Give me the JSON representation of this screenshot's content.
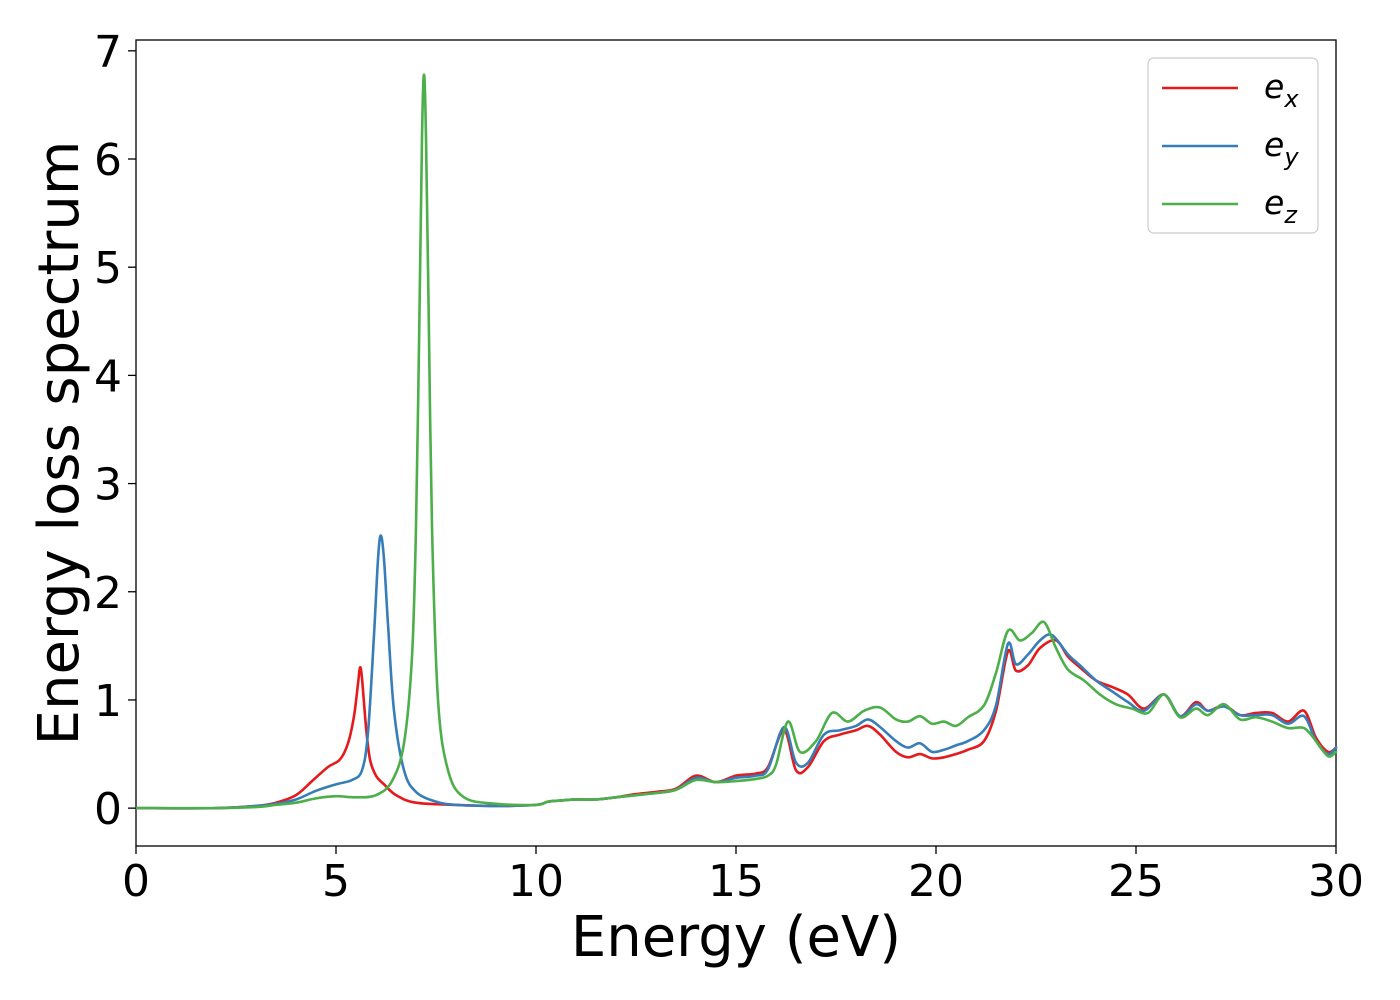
{
  "chart_data": {
    "type": "line",
    "title": "",
    "xlabel": "Energy (eV)",
    "ylabel": "Energy loss spectrum",
    "xlim": [
      0,
      30
    ],
    "ylim": [
      -0.35,
      7.1
    ],
    "xticks": [
      0,
      5,
      10,
      15,
      20,
      25,
      30
    ],
    "xtick_labels": [
      "0",
      "5",
      "10",
      "15",
      "20",
      "25",
      "30"
    ],
    "yticks": [
      0,
      1,
      2,
      3,
      4,
      5,
      6,
      7
    ],
    "ytick_labels": [
      "0",
      "1",
      "2",
      "3",
      "4",
      "5",
      "6",
      "7"
    ],
    "grid": false,
    "legend": {
      "position": "top-right"
    },
    "series": [
      {
        "name": "e_x",
        "label_main": "e",
        "label_sub": "x",
        "color": "#e41a1c",
        "x": [
          0,
          2,
          3,
          3.5,
          4,
          4.4,
          4.8,
          5.1,
          5.3,
          5.45,
          5.55,
          5.6,
          5.65,
          5.75,
          5.85,
          6.0,
          6.2,
          6.5,
          7,
          8,
          9,
          10,
          10.3,
          10.6,
          11,
          11.5,
          12,
          12.5,
          13,
          13.5,
          14,
          14.5,
          15,
          15.5,
          15.8,
          16.2,
          16.5,
          16.8,
          17.2,
          17.6,
          18.0,
          18.3,
          18.6,
          19.0,
          19.3,
          19.6,
          19.9,
          20.2,
          20.5,
          20.8,
          21.2,
          21.5,
          21.8,
          22.0,
          22.3,
          22.6,
          23.0,
          23.3,
          23.6,
          24.0,
          24.4,
          24.8,
          25.2,
          25.7,
          26.1,
          26.5,
          26.8,
          27.2,
          27.6,
          28.0,
          28.4,
          28.8,
          29.2,
          29.5,
          29.8,
          30
        ],
        "y": [
          0,
          0.0,
          0.02,
          0.05,
          0.12,
          0.25,
          0.38,
          0.45,
          0.6,
          0.85,
          1.15,
          1.3,
          1.2,
          0.75,
          0.45,
          0.3,
          0.22,
          0.12,
          0.05,
          0.03,
          0.02,
          0.03,
          0.06,
          0.07,
          0.08,
          0.08,
          0.1,
          0.13,
          0.15,
          0.18,
          0.3,
          0.24,
          0.3,
          0.32,
          0.38,
          0.72,
          0.35,
          0.38,
          0.62,
          0.68,
          0.72,
          0.76,
          0.68,
          0.52,
          0.47,
          0.5,
          0.46,
          0.47,
          0.5,
          0.54,
          0.62,
          0.9,
          1.45,
          1.27,
          1.32,
          1.48,
          1.55,
          1.4,
          1.3,
          1.18,
          1.12,
          1.05,
          0.92,
          1.05,
          0.85,
          0.98,
          0.9,
          0.95,
          0.86,
          0.88,
          0.88,
          0.8,
          0.9,
          0.65,
          0.52,
          0.56
        ]
      },
      {
        "name": "e_y",
        "label_main": "e",
        "label_sub": "y",
        "color": "#377eb8",
        "x": [
          0,
          2,
          3,
          3.5,
          4,
          4.5,
          5.0,
          5.4,
          5.65,
          5.8,
          5.95,
          6.05,
          6.12,
          6.2,
          6.3,
          6.45,
          6.7,
          7.0,
          7.5,
          8,
          9,
          10,
          10.3,
          10.6,
          11,
          11.5,
          12,
          12.5,
          13,
          13.5,
          14,
          14.5,
          15,
          15.5,
          15.8,
          16.2,
          16.5,
          16.8,
          17.2,
          17.6,
          18.0,
          18.3,
          18.6,
          19.0,
          19.3,
          19.6,
          19.9,
          20.2,
          20.5,
          20.8,
          21.2,
          21.5,
          21.8,
          22.0,
          22.3,
          22.6,
          22.9,
          23.3,
          23.6,
          24.0,
          24.4,
          24.8,
          25.2,
          25.7,
          26.1,
          26.5,
          26.8,
          27.2,
          27.6,
          28.0,
          28.4,
          28.8,
          29.2,
          29.5,
          29.8,
          30
        ],
        "y": [
          0,
          0.0,
          0.02,
          0.04,
          0.08,
          0.16,
          0.22,
          0.26,
          0.35,
          0.7,
          1.6,
          2.3,
          2.52,
          2.3,
          1.7,
          0.9,
          0.35,
          0.15,
          0.06,
          0.03,
          0.02,
          0.03,
          0.06,
          0.07,
          0.08,
          0.08,
          0.1,
          0.12,
          0.14,
          0.17,
          0.28,
          0.24,
          0.28,
          0.3,
          0.36,
          0.75,
          0.42,
          0.42,
          0.68,
          0.72,
          0.76,
          0.82,
          0.75,
          0.62,
          0.56,
          0.6,
          0.52,
          0.54,
          0.58,
          0.62,
          0.72,
          0.95,
          1.52,
          1.33,
          1.42,
          1.55,
          1.6,
          1.42,
          1.32,
          1.18,
          1.08,
          0.98,
          0.9,
          1.05,
          0.85,
          0.96,
          0.9,
          0.94,
          0.86,
          0.86,
          0.86,
          0.78,
          0.85,
          0.62,
          0.5,
          0.56
        ]
      },
      {
        "name": "e_z",
        "label_main": "e",
        "label_sub": "z",
        "color": "#4daf4a",
        "x": [
          0,
          2,
          3,
          3.5,
          4,
          4.5,
          5.0,
          5.5,
          6.0,
          6.4,
          6.7,
          6.9,
          7.0,
          7.08,
          7.15,
          7.2,
          7.25,
          7.32,
          7.4,
          7.55,
          7.8,
          8.2,
          9,
          10,
          10.3,
          10.6,
          11,
          11.5,
          12,
          12.5,
          13,
          13.5,
          14,
          14.5,
          15,
          15.5,
          15.8,
          16.0,
          16.3,
          16.6,
          17.0,
          17.4,
          17.8,
          18.2,
          18.6,
          19.0,
          19.3,
          19.6,
          19.9,
          20.2,
          20.5,
          20.8,
          21.2,
          21.5,
          21.8,
          22.1,
          22.4,
          22.7,
          23.0,
          23.3,
          23.7,
          24.1,
          24.5,
          24.9,
          25.3,
          25.7,
          26.1,
          26.5,
          26.8,
          27.2,
          27.6,
          28.0,
          28.4,
          28.8,
          29.2,
          29.5,
          29.8,
          30
        ],
        "y": [
          0,
          0.0,
          0.01,
          0.03,
          0.05,
          0.09,
          0.11,
          0.1,
          0.12,
          0.25,
          0.6,
          1.4,
          2.6,
          4.4,
          6.2,
          6.78,
          6.2,
          4.5,
          2.6,
          1.0,
          0.35,
          0.1,
          0.04,
          0.03,
          0.06,
          0.07,
          0.08,
          0.08,
          0.1,
          0.12,
          0.14,
          0.17,
          0.26,
          0.24,
          0.25,
          0.27,
          0.3,
          0.4,
          0.8,
          0.52,
          0.62,
          0.88,
          0.8,
          0.9,
          0.93,
          0.82,
          0.8,
          0.85,
          0.78,
          0.8,
          0.76,
          0.84,
          0.95,
          1.25,
          1.64,
          1.55,
          1.62,
          1.72,
          1.48,
          1.28,
          1.18,
          1.05,
          0.96,
          0.92,
          0.88,
          1.05,
          0.84,
          0.92,
          0.86,
          0.96,
          0.82,
          0.84,
          0.8,
          0.74,
          0.74,
          0.62,
          0.48,
          0.52
        ]
      }
    ]
  }
}
